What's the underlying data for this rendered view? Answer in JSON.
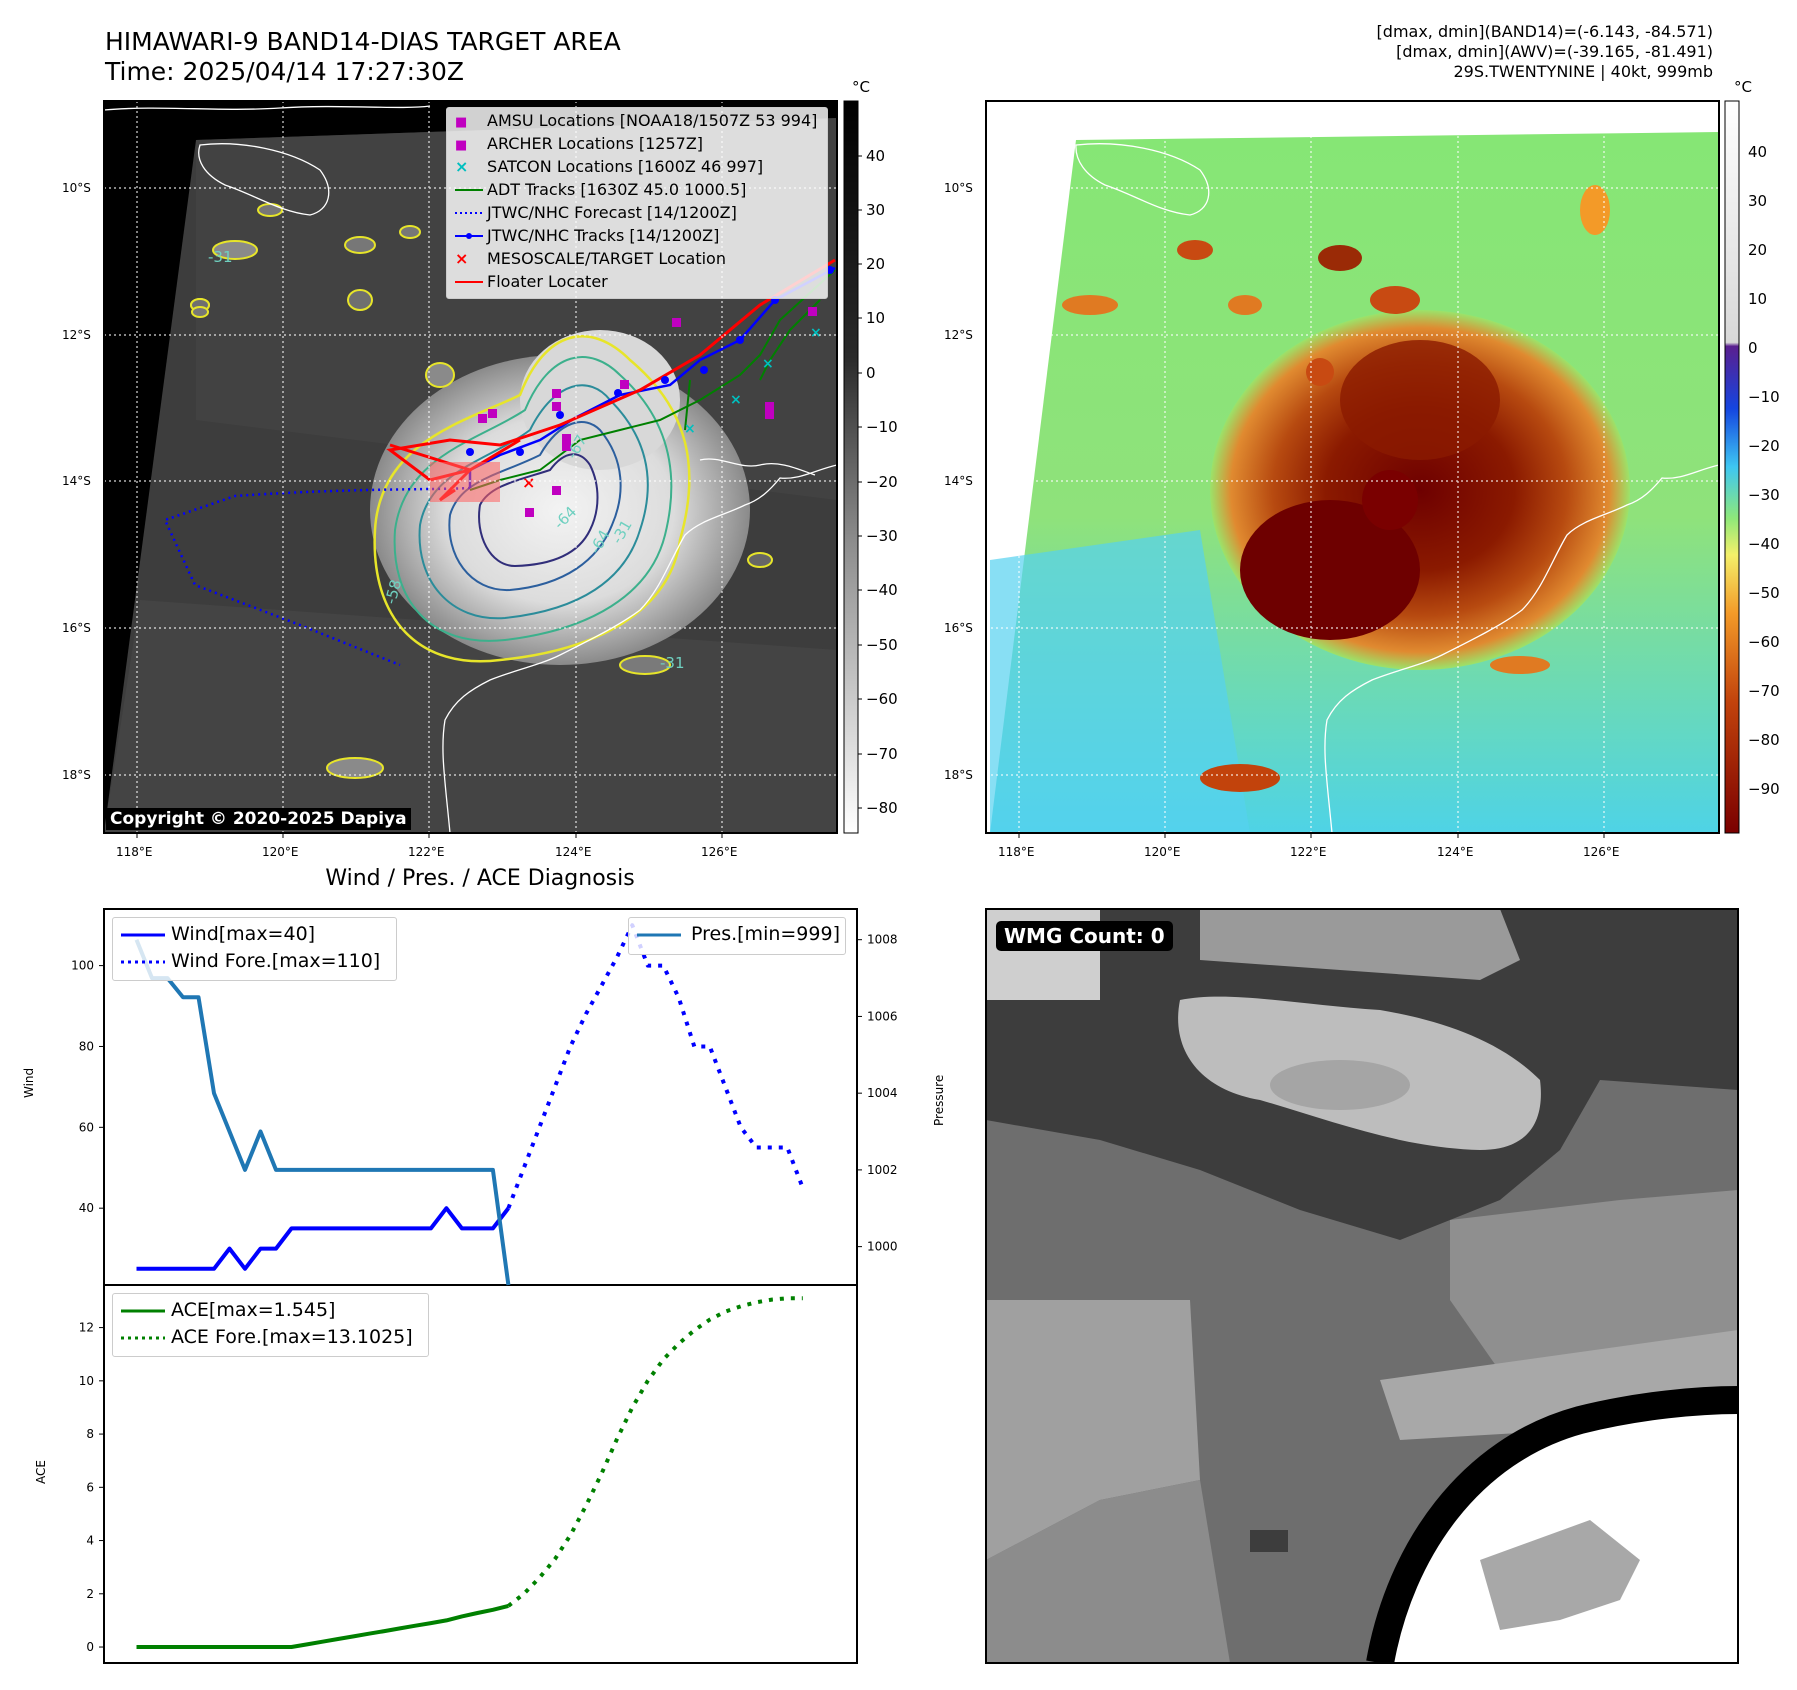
{
  "header": {
    "title_line1": "HIMAWARI-9 BAND14-DIAS TARGET AREA",
    "title_line2": "Time: 2025/04/14 17:27:30Z",
    "stats_line1": "[dmax, dmin](BAND14)=(-6.143, -84.571)",
    "stats_line2": "[dmax, dmin](AWV)=(-39.165, -81.491)",
    "stats_line3": "29S.TWENTYNINE | 40kt, 999mb"
  },
  "map_left": {
    "colorbar_unit": "°C",
    "colorbar_ticks": [
      "40",
      "30",
      "20",
      "10",
      "0",
      "−10",
      "−20",
      "−30",
      "−40",
      "−50",
      "−60",
      "−70",
      "−80"
    ],
    "lat_labels": [
      "10°S",
      "12°S",
      "14°S",
      "16°S",
      "18°S"
    ],
    "lon_labels": [
      "118°E",
      "120°E",
      "122°E",
      "124°E",
      "126°E"
    ],
    "copyright": "Copyright © 2020-2025 Dapiya",
    "contour_labels": [
      "-31",
      "-31",
      "-58",
      "-64",
      "-67",
      "-64",
      "-31"
    ],
    "legend": [
      {
        "label": "AMSU Locations [NOAA18/1507Z 53 994]",
        "color": "#c000c0",
        "sym": "square"
      },
      {
        "label": "ARCHER Locations [1257Z]",
        "color": "#c000c0",
        "sym": "square"
      },
      {
        "label": "SATCON Locations [1600Z 46 997]",
        "color": "#00bfbf",
        "sym": "x"
      },
      {
        "label": "ADT Tracks [1630Z 45.0 1000.5]",
        "color": "#008000",
        "sym": "line"
      },
      {
        "label": "JTWC/NHC Forecast [14/1200Z]",
        "color": "#0000ff",
        "sym": "dotted"
      },
      {
        "label": "JTWC/NHC Tracks [14/1200Z]",
        "color": "#0000ff",
        "sym": "linedot"
      },
      {
        "label": "MESOSCALE/TARGET Location",
        "color": "#ff0000",
        "sym": "redx"
      },
      {
        "label": "Floater Locater",
        "color": "#ff0000",
        "sym": "line"
      }
    ]
  },
  "map_right": {
    "colorbar_unit": "°C",
    "colorbar_ticks": [
      "40",
      "30",
      "20",
      "10",
      "0",
      "−10",
      "−20",
      "−30",
      "−40",
      "−50",
      "−60",
      "−70",
      "−80",
      "−90"
    ],
    "lat_labels": [
      "10°S",
      "12°S",
      "14°S",
      "16°S",
      "18°S"
    ],
    "lon_labels": [
      "118°E",
      "120°E",
      "122°E",
      "124°E",
      "126°E"
    ]
  },
  "wmg": {
    "label": "WMG Count: 0"
  },
  "chart_data": [
    {
      "type": "line",
      "title": "Wind / Pres. / ACE Diagnosis",
      "ylabel": "Wind",
      "y2label": "Pressure",
      "ylim": [
        21,
        114
      ],
      "y2lim": [
        999.0,
        1008.8
      ],
      "yticks": [
        "40",
        "60",
        "80",
        "100"
      ],
      "y2ticks": [
        "1000",
        "1002",
        "1004",
        "1006",
        "1008"
      ],
      "x": [
        0,
        1,
        2,
        3,
        4,
        5,
        6,
        7,
        8,
        9,
        10,
        11,
        12,
        13,
        14,
        15,
        16,
        17,
        18,
        19,
        20,
        21,
        22,
        23,
        24,
        25,
        26,
        27,
        28,
        29,
        30,
        31,
        32,
        33,
        34,
        35,
        36,
        37,
        38,
        39,
        40,
        41,
        42,
        43
      ],
      "series": [
        {
          "name": "Wind[max=40]",
          "color": "#0000ff",
          "style": "solid",
          "x": [
            0,
            1,
            2,
            3,
            4,
            5,
            6,
            7,
            8,
            9,
            10,
            11,
            12,
            13,
            14,
            15,
            16,
            17,
            18,
            19,
            20,
            21,
            22,
            23,
            24
          ],
          "values": [
            25,
            25,
            25,
            25,
            25,
            25,
            30,
            25,
            30,
            30,
            35,
            35,
            35,
            35,
            35,
            35,
            35,
            35,
            35,
            35,
            40,
            35,
            35,
            35,
            40
          ]
        },
        {
          "name": "Wind Fore.[max=110]",
          "color": "#0000ff",
          "style": "dotted",
          "x": [
            24,
            25,
            26,
            27,
            28,
            29,
            30,
            31,
            32,
            33,
            34,
            35,
            36,
            37,
            38,
            39,
            40,
            41,
            42,
            43
          ],
          "values": [
            40,
            50,
            60,
            70,
            80,
            88,
            95,
            102,
            110,
            100,
            100,
            92,
            80,
            80,
            70,
            60,
            55,
            55,
            55,
            45
          ]
        },
        {
          "name": "Pres.[min=999]",
          "color": "#1f77b4",
          "style": "solid",
          "axis": "right",
          "x": [
            0,
            1,
            2,
            3,
            4,
            5,
            6,
            7,
            8,
            9,
            10,
            11,
            12,
            13,
            14,
            15,
            16,
            17,
            18,
            19,
            20,
            21,
            22,
            23,
            24
          ],
          "values": [
            1008.0,
            1007.0,
            1007.0,
            1006.5,
            1006.5,
            1004.0,
            1003.0,
            1002.0,
            1003.0,
            1002.0,
            1002.0,
            1002.0,
            1002.0,
            1002.0,
            1002.0,
            1002.0,
            1002.0,
            1002.0,
            1002.0,
            1002.0,
            1002.0,
            1002.0,
            1002.0,
            1002.0,
            999.0
          ]
        }
      ]
    },
    {
      "type": "line",
      "ylabel": "ACE",
      "ylim": [
        -0.6,
        13.6
      ],
      "yticks": [
        "0",
        "2",
        "4",
        "6",
        "8",
        "10",
        "12"
      ],
      "series": [
        {
          "name": "ACE[max=1.545]",
          "color": "#008000",
          "style": "solid",
          "x": [
            0,
            1,
            2,
            3,
            4,
            5,
            6,
            7,
            8,
            9,
            10,
            11,
            12,
            13,
            14,
            15,
            16,
            17,
            18,
            19,
            20,
            21,
            22,
            23,
            24
          ],
          "values": [
            0,
            0,
            0,
            0,
            0,
            0,
            0,
            0,
            0,
            0,
            0,
            0.1,
            0.2,
            0.3,
            0.4,
            0.5,
            0.6,
            0.7,
            0.8,
            0.9,
            1.0,
            1.15,
            1.28,
            1.4,
            1.545
          ]
        },
        {
          "name": "ACE Fore.[max=13.1025]",
          "color": "#008000",
          "style": "dotted",
          "x": [
            24,
            25,
            26,
            27,
            28,
            29,
            30,
            31,
            32,
            33,
            34,
            35,
            36,
            37,
            38,
            39,
            40,
            41,
            42,
            43
          ],
          "values": [
            1.545,
            2.0,
            2.6,
            3.3,
            4.2,
            5.3,
            6.5,
            7.8,
            9.0,
            10.0,
            10.8,
            11.4,
            11.9,
            12.3,
            12.6,
            12.8,
            12.95,
            13.05,
            13.1,
            13.1025
          ]
        }
      ]
    }
  ]
}
